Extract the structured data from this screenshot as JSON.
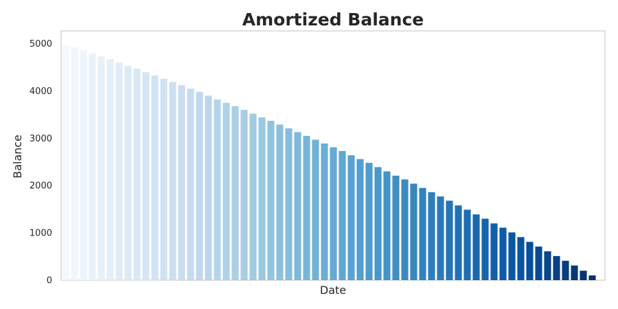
{
  "chart_data": {
    "type": "bar",
    "title": "Amortized Balance",
    "xlabel": "Date",
    "ylabel": "Balance",
    "ylim": [
      0,
      5270
    ],
    "yticks": [
      0,
      1000,
      2000,
      3000,
      4000,
      5000
    ],
    "grid": false,
    "legend": "none",
    "colormap": "Blues",
    "values": [
      4980,
      4920,
      4860,
      4800,
      4730,
      4670,
      4600,
      4530,
      4470,
      4400,
      4330,
      4260,
      4190,
      4120,
      4050,
      3980,
      3900,
      3820,
      3750,
      3680,
      3600,
      3520,
      3440,
      3370,
      3290,
      3210,
      3130,
      3050,
      2970,
      2890,
      2810,
      2730,
      2640,
      2560,
      2480,
      2390,
      2300,
      2210,
      2130,
      2040,
      1950,
      1860,
      1770,
      1680,
      1580,
      1490,
      1390,
      1300,
      1200,
      1110,
      1010,
      910,
      810,
      710,
      610,
      510,
      410,
      310,
      200,
      100
    ]
  }
}
